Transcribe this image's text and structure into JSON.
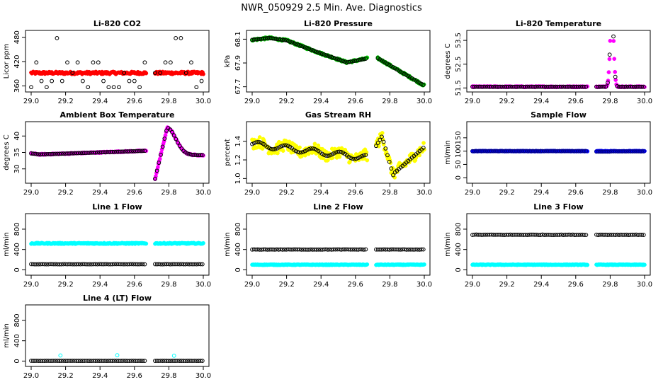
{
  "page_title": "NWR_050929  2.5 Min. Ave. Diagnostics",
  "colors": {
    "black": "#000000",
    "red": "#ff0000",
    "green": "#00c800",
    "magenta": "#ff00ff",
    "yellow": "#ffff00",
    "blue": "#0000ff",
    "navy": "#000080",
    "cyan": "#00ffff"
  },
  "chart_data": [
    {
      "id": "co2",
      "type": "scatter",
      "title": "Li-820 CO2",
      "ylabel": "Licor ppm",
      "xlim": [
        29.0,
        30.0
      ],
      "ylim": [
        352,
        490
      ],
      "xticks": [
        "29.0",
        "29.2",
        "29.4",
        "29.6",
        "29.8",
        "30.0"
      ],
      "yticks": [
        360,
        420,
        480
      ],
      "series": [
        {
          "name": "fill",
          "color": "red",
          "shape": "filled",
          "pattern": "flat",
          "segments": [
            [
              29.0,
              29.67
            ],
            [
              29.72,
              30.0
            ]
          ],
          "y": 392,
          "noise": 3
        },
        {
          "name": "points",
          "color": "black",
          "shape": "open",
          "pattern": "co2",
          "segments": [
            [
              29.0,
              29.67
            ],
            [
              29.72,
              30.0
            ]
          ]
        }
      ]
    },
    {
      "id": "pressure",
      "type": "scatter",
      "title": "Li-820 Pressure",
      "ylabel": "kPa",
      "xlim": [
        29.0,
        30.0
      ],
      "ylim": [
        67.68,
        68.15
      ],
      "xticks": [
        "29.0",
        "29.2",
        "29.4",
        "29.6",
        "29.8",
        "30.0"
      ],
      "yticks": [
        67.7,
        67.9,
        68.1
      ],
      "series": [
        {
          "name": "fill",
          "color": "green",
          "shape": "filled",
          "pattern": "pressure",
          "segments": [
            [
              29.0,
              29.67
            ],
            [
              29.73,
              30.0
            ]
          ],
          "noise": 0.008
        },
        {
          "name": "points",
          "color": "black",
          "shape": "open",
          "pattern": "pressure",
          "segments": [
            [
              29.0,
              29.67
            ],
            [
              29.73,
              30.0
            ]
          ]
        }
      ]
    },
    {
      "id": "temp",
      "type": "scatter",
      "title": "Li-820 Temperature",
      "ylabel": "degrees C",
      "xlim": [
        29.0,
        30.0
      ],
      "ylim": [
        51.45,
        53.8
      ],
      "xticks": [
        "29.0",
        "29.2",
        "29.4",
        "29.6",
        "29.8",
        "30.0"
      ],
      "yticks": [
        51.5,
        52.5,
        53.5
      ],
      "series": [
        {
          "name": "fill",
          "color": "magenta",
          "shape": "filled",
          "pattern": "temp",
          "segments": [
            [
              29.0,
              29.67
            ],
            [
              29.72,
              30.0
            ]
          ],
          "noise": 0.02
        },
        {
          "name": "points",
          "color": "black",
          "shape": "open",
          "pattern": "temp",
          "segments": [
            [
              29.0,
              29.67
            ],
            [
              29.72,
              30.0
            ]
          ]
        }
      ]
    },
    {
      "id": "boxtemp",
      "type": "scatter",
      "title": "Ambient Box Temperature",
      "ylabel": "degrees C",
      "xlim": [
        29.0,
        30.0
      ],
      "ylim": [
        26.5,
        43.5
      ],
      "xticks": [
        "29.0",
        "29.2",
        "29.4",
        "29.6",
        "29.8",
        "30.0"
      ],
      "yticks": [
        30,
        35,
        40
      ],
      "series": [
        {
          "name": "fill",
          "color": "magenta",
          "shape": "filled",
          "pattern": "boxtemp",
          "segments": [
            [
              29.0,
              29.67
            ],
            [
              29.72,
              30.0
            ]
          ],
          "noise": 0.15
        },
        {
          "name": "points",
          "color": "black",
          "shape": "open",
          "pattern": "boxtemp",
          "segments": [
            [
              29.0,
              29.67
            ],
            [
              29.72,
              30.0
            ]
          ]
        }
      ]
    },
    {
      "id": "rh",
      "type": "scatter",
      "title": "Gas Stream RH",
      "ylabel": "percent",
      "xlim": [
        29.0,
        30.0
      ],
      "ylim": [
        0.98,
        1.58
      ],
      "xticks": [
        "29.0",
        "29.2",
        "29.4",
        "29.6",
        "29.8",
        "30.0"
      ],
      "yticks": [
        "1.0",
        "1.2",
        "1.4"
      ],
      "series": [
        {
          "name": "fill",
          "color": "yellow",
          "shape": "filled",
          "pattern": "rh",
          "segments": [
            [
              29.0,
              29.67
            ],
            [
              29.72,
              30.0
            ]
          ],
          "noise": 0.06
        },
        {
          "name": "points",
          "color": "black",
          "shape": "open",
          "pattern": "rh",
          "segments": [
            [
              29.0,
              29.67
            ],
            [
              29.72,
              30.0
            ]
          ]
        }
      ]
    },
    {
      "id": "sample",
      "type": "scatter",
      "title": "Sample Flow",
      "ylabel": "ml/min",
      "xlim": [
        29.0,
        30.0
      ],
      "ylim": [
        -10,
        200
      ],
      "xticks": [
        "29.0",
        "29.2",
        "29.4",
        "29.6",
        "29.8",
        "30.0"
      ],
      "yticks": [
        0,
        50,
        100,
        150
      ],
      "series": [
        {
          "name": "fill",
          "color": "blue",
          "shape": "filled",
          "pattern": "flat",
          "segments": [
            [
              29.0,
              29.67
            ],
            [
              29.72,
              30.0
            ]
          ],
          "y": 100,
          "noise": 1
        },
        {
          "name": "points",
          "color": "navy",
          "shape": "open",
          "pattern": "sample",
          "segments": [
            [
              29.0,
              29.67
            ],
            [
              29.72,
              30.0
            ]
          ]
        }
      ]
    },
    {
      "id": "line1",
      "type": "scatter",
      "title": "Line 1 Flow",
      "ylabel": "ml/min",
      "xlim": [
        29.0,
        30.0
      ],
      "ylim": [
        -50,
        1050
      ],
      "xticks": [
        "29.0",
        "29.2",
        "29.4",
        "29.6",
        "29.8",
        "30.0"
      ],
      "yticks": [
        0,
        400,
        800
      ],
      "series": [
        {
          "name": "high",
          "color": "cyan",
          "shape": "filled",
          "pattern": "flat",
          "segments": [
            [
              29.0,
              29.67
            ],
            [
              29.72,
              30.0
            ]
          ],
          "y": 520,
          "noise": 10
        },
        {
          "name": "low",
          "color": "black",
          "shape": "open",
          "pattern": "flat",
          "segments": [
            [
              29.0,
              29.67
            ],
            [
              29.72,
              30.0
            ]
          ],
          "y": 110,
          "noise": 2
        }
      ]
    },
    {
      "id": "line2",
      "type": "scatter",
      "title": "Line 2 Flow",
      "ylabel": "ml/min",
      "xlim": [
        29.0,
        30.0
      ],
      "ylim": [
        -50,
        1050
      ],
      "xticks": [
        "29.0",
        "29.2",
        "29.4",
        "29.6",
        "29.8",
        "30.0"
      ],
      "yticks": [
        0,
        400,
        800
      ],
      "series": [
        {
          "name": "low",
          "color": "cyan",
          "shape": "filled",
          "pattern": "flat",
          "segments": [
            [
              29.0,
              29.67
            ],
            [
              29.72,
              30.0
            ]
          ],
          "y": 100,
          "noise": 6
        },
        {
          "name": "high",
          "color": "black",
          "shape": "open",
          "pattern": "flat",
          "segments": [
            [
              29.0,
              29.67
            ],
            [
              29.72,
              30.0
            ]
          ],
          "y": 400,
          "noise": 3
        }
      ]
    },
    {
      "id": "line3",
      "type": "scatter",
      "title": "Line 3 Flow",
      "ylabel": "ml/min",
      "xlim": [
        29.0,
        30.0
      ],
      "ylim": [
        -50,
        1050
      ],
      "xticks": [
        "29.0",
        "29.2",
        "29.4",
        "29.6",
        "29.8",
        "30.0"
      ],
      "yticks": [
        0,
        400,
        800
      ],
      "series": [
        {
          "name": "low",
          "color": "cyan",
          "shape": "filled",
          "pattern": "flat",
          "segments": [
            [
              29.0,
              29.67
            ],
            [
              29.72,
              30.0
            ]
          ],
          "y": 100,
          "noise": 6
        },
        {
          "name": "high",
          "color": "black",
          "shape": "open",
          "pattern": "flat",
          "segments": [
            [
              29.0,
              29.67
            ],
            [
              29.72,
              30.0
            ]
          ],
          "y": 690,
          "noise": 4
        }
      ]
    },
    {
      "id": "line4",
      "type": "scatter",
      "title": "Line 4 (LT) Flow",
      "ylabel": "ml/min",
      "xlim": [
        29.0,
        30.0
      ],
      "ylim": [
        -50,
        1050
      ],
      "xticks": [
        "29.0",
        "29.2",
        "29.4",
        "29.6",
        "29.8",
        "30.0"
      ],
      "yticks": [
        0,
        400,
        800
      ],
      "series": [
        {
          "name": "base",
          "color": "black",
          "shape": "open",
          "pattern": "flat",
          "segments": [
            [
              29.0,
              29.67
            ],
            [
              29.72,
              30.0
            ]
          ],
          "y": 5,
          "noise": 1
        },
        {
          "name": "spikes",
          "color": "cyan",
          "shape": "open",
          "pattern": "points",
          "x": [
            29.17,
            29.5,
            29.83
          ],
          "yvals": [
            110,
            115,
            105
          ]
        }
      ]
    }
  ]
}
